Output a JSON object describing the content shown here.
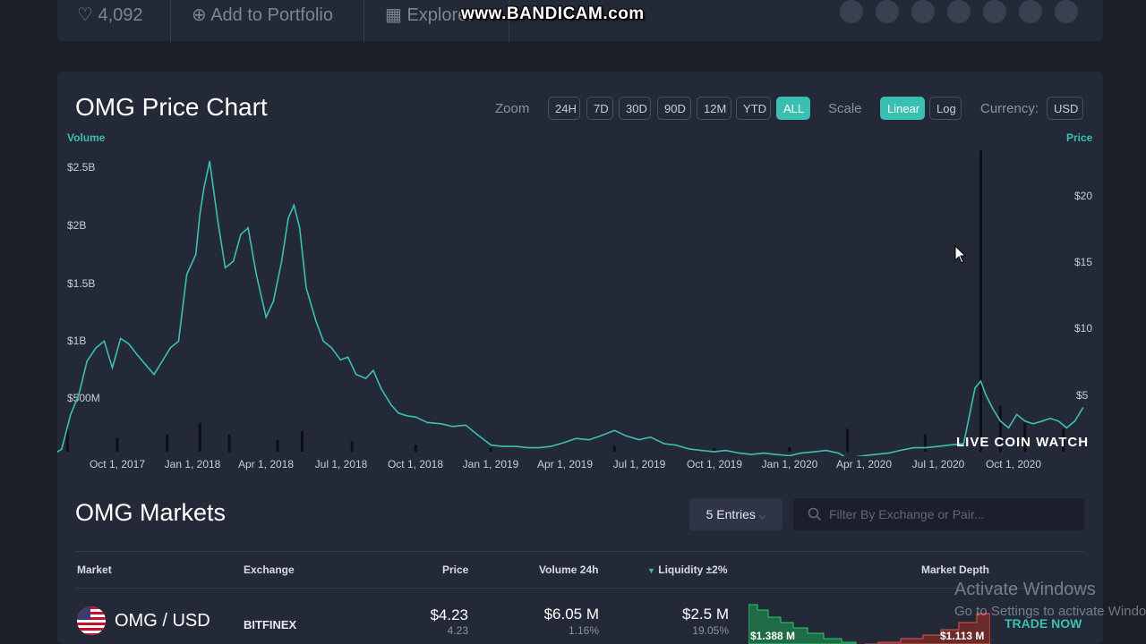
{
  "top_bar": {
    "favorites_count": "4,092",
    "add_portfolio_label": "Add to Portfolio",
    "explorer_label": "Explorer"
  },
  "recorder_watermark": "www.BANDICAM.com",
  "chart_panel": {
    "title": "OMG Price Chart",
    "zoom_label": "Zoom",
    "zoom_options": [
      "24H",
      "7D",
      "30D",
      "90D",
      "12M",
      "YTD",
      "ALL"
    ],
    "zoom_selected": "ALL",
    "scale_label": "Scale",
    "scale_options": [
      "Linear",
      "Log"
    ],
    "scale_selected": "Linear",
    "currency_label": "Currency:",
    "currency_value": "USD",
    "left_axis_title": "Volume",
    "right_axis_title": "Price",
    "brand_watermark": "LIVE COIN WATCH"
  },
  "chart_data": {
    "type": "line",
    "x_tick_labels": [
      "Oct 1, 2017",
      "Jan 1, 2018",
      "Apr 1, 2018",
      "Jul 1, 2018",
      "Oct 1, 2018",
      "Jan 1, 2019",
      "Apr 1, 2019",
      "Jul 1, 2019",
      "Oct 1, 2019",
      "Jan 1, 2020",
      "Apr 1, 2020",
      "Jul 1, 2020",
      "Oct 1, 2020"
    ],
    "left_y_ticks": [
      "$500M",
      "$1B",
      "$1.5B",
      "$2B",
      "$2.5B"
    ],
    "right_y_ticks": [
      "$5",
      "$10",
      "$15",
      "$20"
    ],
    "ylim_price": [
      0,
      23
    ],
    "series": [
      {
        "name": "Price",
        "color": "#3bbfb2",
        "x": [
          "2017-07-15",
          "2017-07-25",
          "2017-08-05",
          "2017-08-15",
          "2017-08-25",
          "2017-09-05",
          "2017-09-15",
          "2017-09-25",
          "2017-10-05",
          "2017-10-15",
          "2017-10-25",
          "2017-11-05",
          "2017-11-15",
          "2017-11-25",
          "2017-12-05",
          "2017-12-15",
          "2017-12-25",
          "2018-01-05",
          "2018-01-10",
          "2018-01-15",
          "2018-01-22",
          "2018-02-01",
          "2018-02-10",
          "2018-02-20",
          "2018-03-01",
          "2018-03-10",
          "2018-03-20",
          "2018-04-01",
          "2018-04-10",
          "2018-04-20",
          "2018-04-28",
          "2018-05-05",
          "2018-05-12",
          "2018-05-20",
          "2018-06-01",
          "2018-06-10",
          "2018-06-20",
          "2018-07-01",
          "2018-07-10",
          "2018-07-20",
          "2018-08-01",
          "2018-08-10",
          "2018-08-20",
          "2018-09-01",
          "2018-09-10",
          "2018-09-20",
          "2018-10-01",
          "2018-10-15",
          "2018-11-01",
          "2018-11-15",
          "2018-12-01",
          "2018-12-15",
          "2019-01-01",
          "2019-01-15",
          "2019-02-01",
          "2019-02-15",
          "2019-03-01",
          "2019-03-15",
          "2019-04-01",
          "2019-04-15",
          "2019-05-01",
          "2019-05-15",
          "2019-06-01",
          "2019-06-15",
          "2019-07-01",
          "2019-07-15",
          "2019-08-01",
          "2019-08-15",
          "2019-09-01",
          "2019-09-15",
          "2019-10-01",
          "2019-10-15",
          "2019-11-01",
          "2019-11-15",
          "2019-12-01",
          "2019-12-15",
          "2020-01-01",
          "2020-01-15",
          "2020-02-01",
          "2020-02-15",
          "2020-03-01",
          "2020-03-12",
          "2020-03-20",
          "2020-04-01",
          "2020-04-15",
          "2020-05-01",
          "2020-05-15",
          "2020-06-01",
          "2020-06-15",
          "2020-07-01",
          "2020-07-15",
          "2020-08-01",
          "2020-08-15",
          "2020-08-22",
          "2020-08-28",
          "2020-09-05",
          "2020-09-15",
          "2020-09-25",
          "2020-10-05",
          "2020-10-15",
          "2020-10-25",
          "2020-11-05",
          "2020-11-15",
          "2020-11-25",
          "2020-12-05",
          "2020-12-15",
          "2020-12-25"
        ],
        "y": [
          0.5,
          0.9,
          3.5,
          5.0,
          7.5,
          8.5,
          9.0,
          7.0,
          9.2,
          8.8,
          8.0,
          7.2,
          6.5,
          7.5,
          8.5,
          9.0,
          14.0,
          15.5,
          18.5,
          20.5,
          22.5,
          18.0,
          14.5,
          15.0,
          17.0,
          17.5,
          14.0,
          10.8,
          12.0,
          15.0,
          18.2,
          19.2,
          17.5,
          13.0,
          10.5,
          9.0,
          8.5,
          7.6,
          7.8,
          6.5,
          6.2,
          6.8,
          5.4,
          4.2,
          3.6,
          3.4,
          3.3,
          2.9,
          2.8,
          2.6,
          2.7,
          2.0,
          1.2,
          1.1,
          1.1,
          1.0,
          1.0,
          1.1,
          1.4,
          1.7,
          1.6,
          1.9,
          2.3,
          1.9,
          1.6,
          1.8,
          1.3,
          1.2,
          0.9,
          0.8,
          0.7,
          0.8,
          0.6,
          0.5,
          0.6,
          0.5,
          0.4,
          0.6,
          0.7,
          0.8,
          0.6,
          0.2,
          0.3,
          0.4,
          0.5,
          0.6,
          0.8,
          1.0,
          1.0,
          1.1,
          1.2,
          1.3,
          5.5,
          6.0,
          5.0,
          4.0,
          3.0,
          2.5,
          3.5,
          3.0,
          2.8,
          3.0,
          3.2,
          3.0,
          2.5,
          3.0,
          4.0
        ]
      },
      {
        "name": "Volume",
        "color": "#0d0f16",
        "note_units": "USD",
        "x": [
          "2017-08-01",
          "2017-10-01",
          "2017-12-01",
          "2018-01-10",
          "2018-02-15",
          "2018-04-15",
          "2018-05-15",
          "2018-07-15",
          "2018-10-01",
          "2019-01-01",
          "2019-06-01",
          "2019-10-01",
          "2020-01-01",
          "2020-03-12",
          "2020-06-15",
          "2020-08-22",
          "2020-09-15",
          "2020-10-15",
          "2020-12-01"
        ],
        "y": [
          200000000,
          120000000,
          150000000,
          250000000,
          150000000,
          100000000,
          180000000,
          90000000,
          60000000,
          30000000,
          50000000,
          30000000,
          40000000,
          200000000,
          150000000,
          2620000000,
          400000000,
          250000000,
          200000000
        ]
      }
    ]
  },
  "markets": {
    "title": "OMG Markets",
    "entries_label": "5 Entries",
    "filter_placeholder": "Filter By Exchange or Pair...",
    "columns": [
      "Market",
      "Exchange",
      "Price",
      "Volume 24h",
      "Liquidity ±2%",
      "Market Depth"
    ],
    "sorted_column": "Liquidity ±2%",
    "rows": [
      {
        "pair": "OMG / USD",
        "exchange": "BITFINEX",
        "price": "$4.23",
        "price_sub": "4.23",
        "volume": "$6.05 M",
        "volume_sub": "1.16%",
        "liquidity": "$2.5 M",
        "liquidity_sub": "19.05%",
        "depth_bid": "$1.388 M",
        "depth_ask": "$1.113 M",
        "action": "TRADE NOW"
      }
    ]
  },
  "os_overlay": {
    "activate_title": "Activate Windows",
    "activate_sub": "Go to Settings to activate Windows."
  }
}
